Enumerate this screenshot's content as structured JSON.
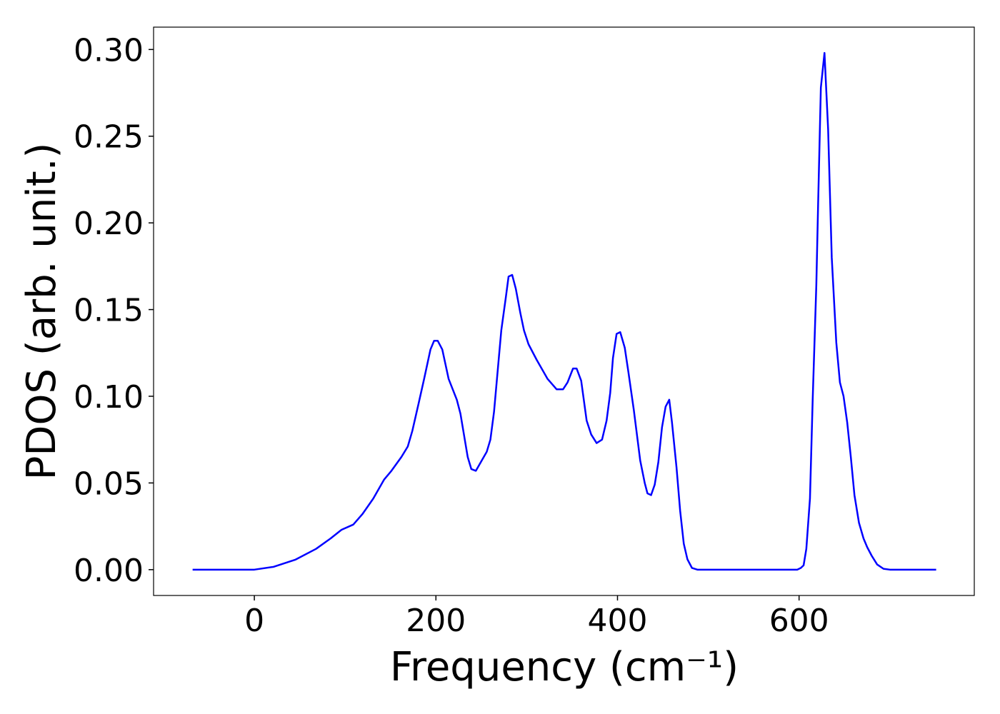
{
  "chart_data": {
    "type": "line",
    "xlabel": "Frequency (cm⁻¹)",
    "ylabel": "PDOS (arb. unit.)",
    "x": [
      -68,
      0,
      21,
      45,
      68,
      84,
      96,
      109,
      119,
      131,
      143,
      151,
      162,
      169,
      174,
      181,
      187,
      194,
      198,
      202,
      207,
      214,
      223,
      227,
      235,
      239,
      244,
      256,
      260,
      264,
      272,
      277,
      280,
      284,
      288,
      293,
      297,
      302,
      311,
      323,
      333,
      340,
      345,
      351,
      355,
      360,
      366,
      371,
      377,
      383,
      388,
      392,
      395,
      399,
      403,
      408,
      412,
      418,
      425,
      430,
      433,
      437,
      441,
      445,
      449,
      453,
      457,
      460,
      465,
      469,
      473,
      477,
      482,
      488,
      598,
      602,
      605,
      608,
      612,
      615,
      619,
      621,
      624,
      628,
      632,
      636,
      641,
      645,
      649,
      653,
      657,
      661,
      666,
      671,
      675,
      680,
      686,
      693,
      700,
      751
    ],
    "series": [
      {
        "name": "PDOS",
        "color": "#0000ff",
        "values": [
          0,
          0,
          0.0016,
          0.0057,
          0.012,
          0.018,
          0.023,
          0.026,
          0.032,
          0.041,
          0.052,
          0.057,
          0.065,
          0.071,
          0.08,
          0.096,
          0.11,
          0.127,
          0.132,
          0.132,
          0.127,
          0.11,
          0.098,
          0.09,
          0.065,
          0.058,
          0.057,
          0.068,
          0.075,
          0.091,
          0.138,
          0.157,
          0.169,
          0.17,
          0.162,
          0.148,
          0.138,
          0.13,
          0.121,
          0.11,
          0.104,
          0.104,
          0.108,
          0.116,
          0.116,
          0.109,
          0.086,
          0.078,
          0.073,
          0.075,
          0.086,
          0.102,
          0.122,
          0.136,
          0.137,
          0.128,
          0.114,
          0.092,
          0.063,
          0.05,
          0.044,
          0.043,
          0.049,
          0.062,
          0.082,
          0.094,
          0.098,
          0.085,
          0.059,
          0.034,
          0.015,
          0.006,
          0.001,
          0,
          0,
          0.001,
          0.0025,
          0.012,
          0.041,
          0.098,
          0.164,
          0.211,
          0.278,
          0.298,
          0.254,
          0.18,
          0.131,
          0.108,
          0.1,
          0.085,
          0.065,
          0.043,
          0.027,
          0.018,
          0.013,
          0.008,
          0.003,
          0.0005,
          0,
          0
        ]
      }
    ],
    "xlim": [
      -111,
      793
    ],
    "ylim": [
      -0.0149,
      0.3129
    ],
    "xticks": [
      0,
      200,
      400,
      600
    ],
    "yticks": [
      {
        "value": 0,
        "label": "0.00"
      },
      {
        "value": 0.05,
        "label": "0.05"
      },
      {
        "value": 0.1,
        "label": "0.10"
      },
      {
        "value": 0.15,
        "label": "0.15"
      },
      {
        "value": 0.2,
        "label": "0.20"
      },
      {
        "value": 0.25,
        "label": "0.25"
      },
      {
        "value": 0.3,
        "label": "0.30"
      }
    ]
  }
}
